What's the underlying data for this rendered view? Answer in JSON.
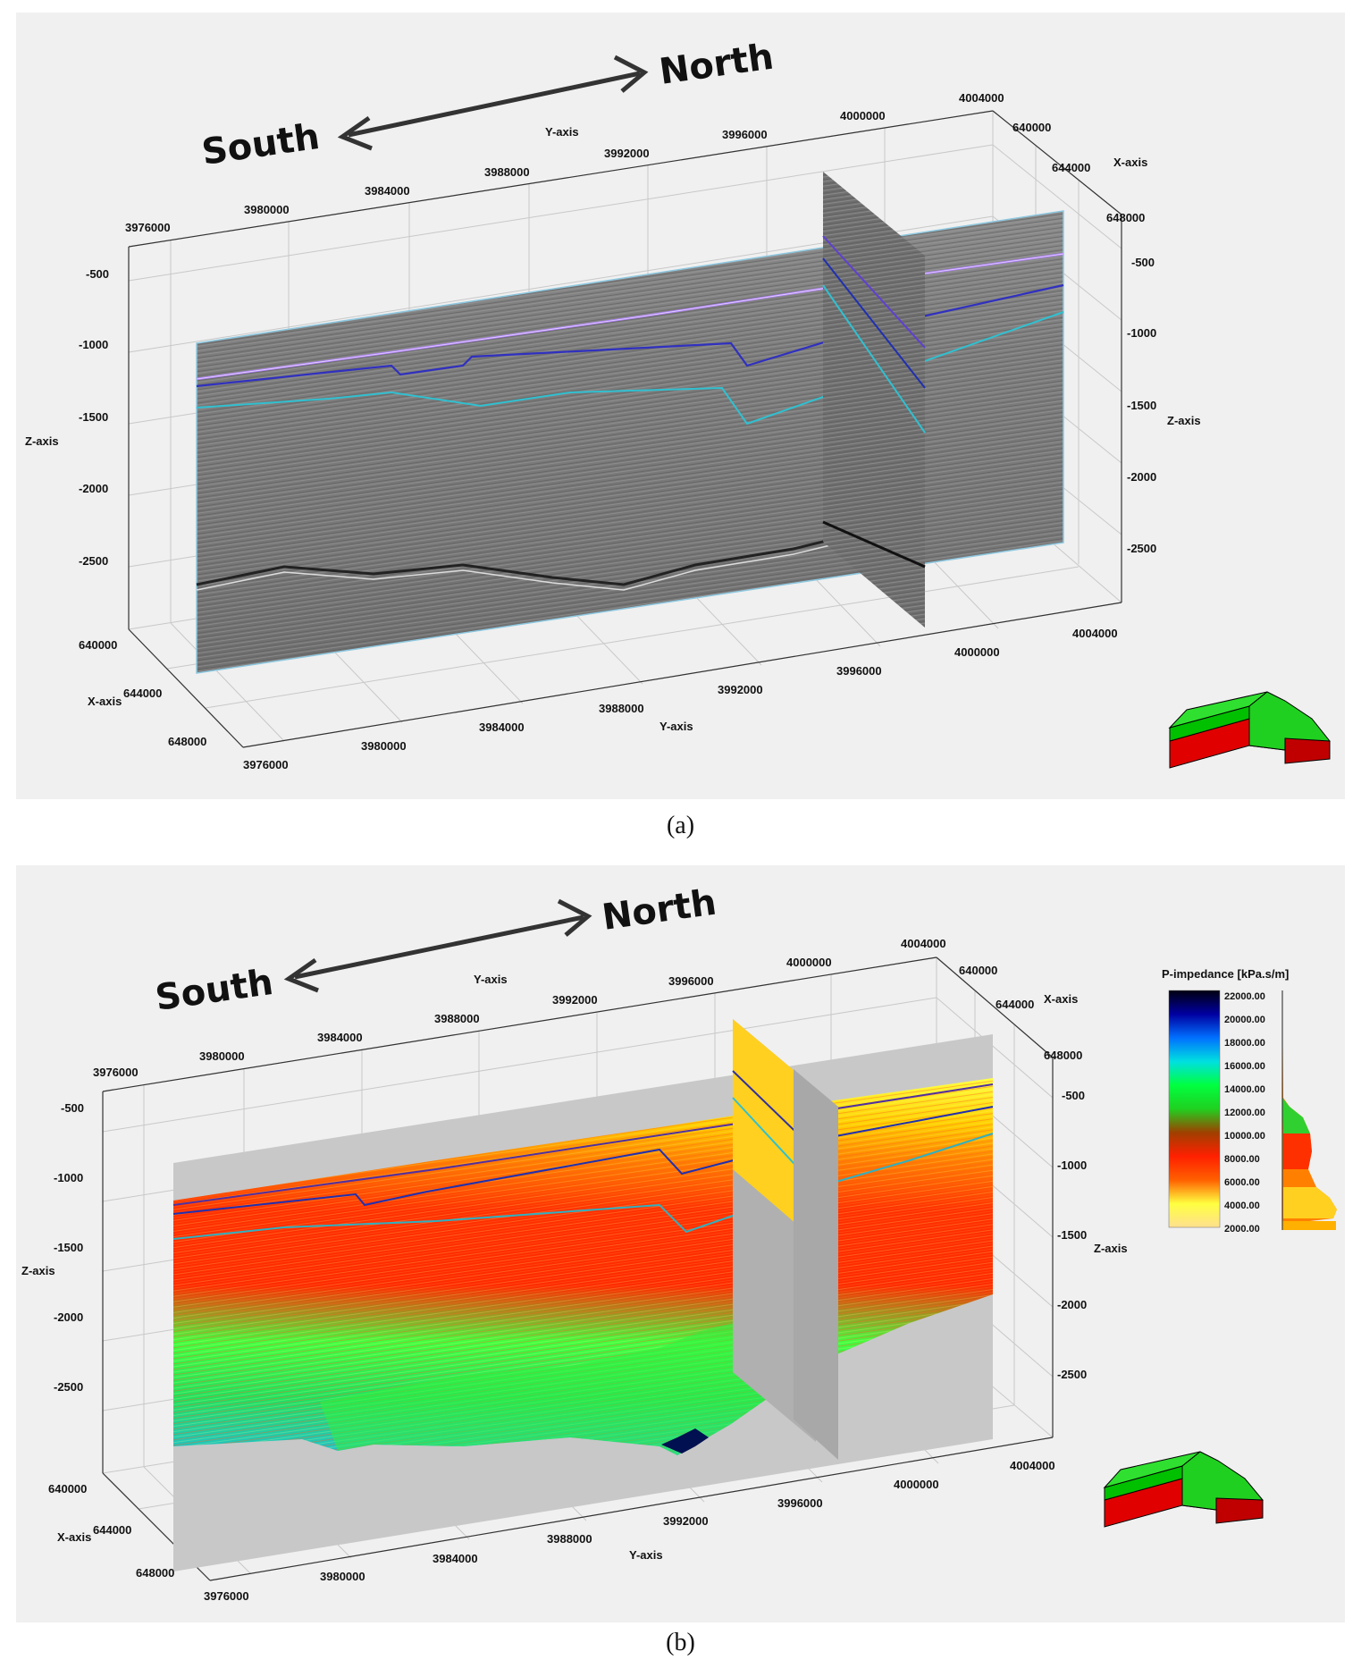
{
  "panel_a": {
    "caption": "(a)",
    "direction": {
      "south": "South",
      "north": "North"
    },
    "axis_titles": {
      "y_top": "Y-axis",
      "x_right": "X-axis",
      "z_left": "Z-axis",
      "z_right": "Z-axis",
      "x_left": "X-axis",
      "y_bottom": "Y-axis"
    },
    "top_y_ticks": [
      "3976000",
      "3980000",
      "3984000",
      "3988000",
      "3992000",
      "3996000",
      "4000000",
      "4004000"
    ],
    "right_x_ticks": [
      "640000",
      "644000",
      "648000"
    ],
    "left_z_ticks": [
      "-500",
      "-1000",
      "-1500",
      "-2000",
      "-2500"
    ],
    "right_z_ticks": [
      "-500",
      "-1000",
      "-1500",
      "-2000",
      "-2500"
    ],
    "left_x_ticks": [
      "640000",
      "644000",
      "648000"
    ],
    "bottom_y_ticks": [
      "3976000",
      "3980000",
      "3984000",
      "3988000",
      "3992000",
      "3996000",
      "4000000",
      "4004000"
    ]
  },
  "panel_b": {
    "caption": "(b)",
    "direction": {
      "south": "South",
      "north": "North"
    },
    "axis_titles": {
      "y_top": "Y-axis",
      "x_right": "X-axis",
      "z_left": "Z-axis",
      "z_right": "Z-axis",
      "x_left": "X-axis",
      "y_bottom": "Y-axis"
    },
    "top_y_ticks": [
      "3976000",
      "3980000",
      "3984000",
      "3988000",
      "3992000",
      "3996000",
      "4000000",
      "4004000"
    ],
    "right_x_ticks": [
      "640000",
      "644000",
      "648000"
    ],
    "left_z_ticks": [
      "-500",
      "-1000",
      "-1500",
      "-2000",
      "-2500"
    ],
    "right_z_ticks": [
      "-500",
      "-1000",
      "-1500",
      "-2000",
      "-2500"
    ],
    "left_x_ticks": [
      "640000",
      "644000",
      "648000"
    ],
    "bottom_y_ticks": [
      "3976000",
      "3980000",
      "3984000",
      "3988000",
      "3992000",
      "3996000",
      "4000000",
      "4004000"
    ],
    "colorbar": {
      "title": "P-impedance [kPa.s/m]",
      "ticks": [
        "22000.00",
        "20000.00",
        "18000.00",
        "16000.00",
        "14000.00",
        "12000.00",
        "10000.00",
        "8000.00",
        "6000.00",
        "4000.00",
        "2000.00"
      ],
      "colors": [
        "#000010",
        "#0000a0",
        "#0070ff",
        "#00e0e0",
        "#00ff40",
        "#20d020",
        "#a04000",
        "#ff2000",
        "#ff6000",
        "#ffff40",
        "#ffe090"
      ]
    }
  }
}
